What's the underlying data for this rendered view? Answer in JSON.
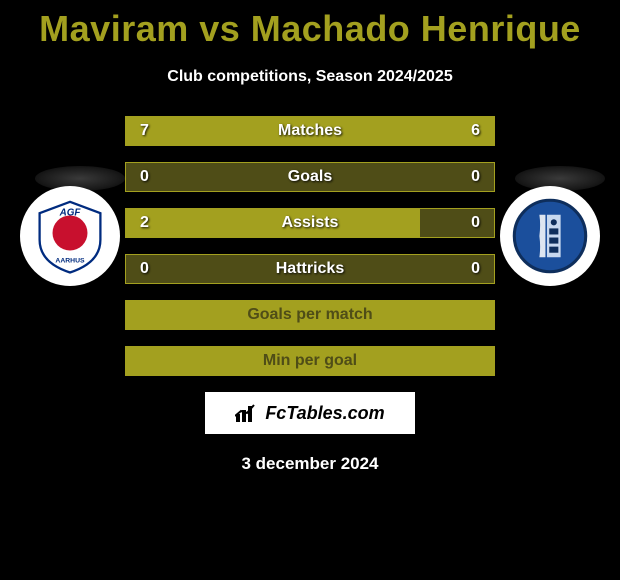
{
  "title": "Maviram vs Machado Henrique",
  "subtitle": "Club competitions, Season 2024/2025",
  "date": "3 december 2024",
  "watermark": "FcTables.com",
  "colors": {
    "background": "#000000",
    "accent": "#a3a01f",
    "bar_bg": "#4f4d17",
    "text": "#ffffff",
    "badge_bg": "#ffffff"
  },
  "stats": [
    {
      "label": "Matches",
      "left_val": "7",
      "right_val": "6",
      "left_pct": 53.8,
      "right_pct": 46.2,
      "full": false
    },
    {
      "label": "Goals",
      "left_val": "0",
      "right_val": "0",
      "left_pct": 0,
      "right_pct": 0,
      "full": false
    },
    {
      "label": "Assists",
      "left_val": "2",
      "right_val": "0",
      "left_pct": 80,
      "right_pct": 0,
      "full": false
    },
    {
      "label": "Hattricks",
      "left_val": "0",
      "right_val": "0",
      "left_pct": 0,
      "right_pct": 0,
      "full": false
    },
    {
      "label": "Goals per match",
      "left_val": "",
      "right_val": "",
      "left_pct": 100,
      "right_pct": 0,
      "full": true
    },
    {
      "label": "Min per goal",
      "left_val": "",
      "right_val": "",
      "left_pct": 100,
      "right_pct": 0,
      "full": true
    }
  ],
  "club_left": {
    "name": "AGF Aarhus",
    "shield_fill": "#ffffff",
    "shield_border": "#002b7f",
    "emblem_fill": "#c8102e",
    "text_top": "AGF",
    "text_bottom": "AARHUS",
    "text_color": "#002b7f"
  },
  "club_right": {
    "name": "FC Vizela",
    "circle_fill": "#1b4f9c",
    "circle_border": "#0e2e5c",
    "inner_fill": "#c7d8ef"
  }
}
